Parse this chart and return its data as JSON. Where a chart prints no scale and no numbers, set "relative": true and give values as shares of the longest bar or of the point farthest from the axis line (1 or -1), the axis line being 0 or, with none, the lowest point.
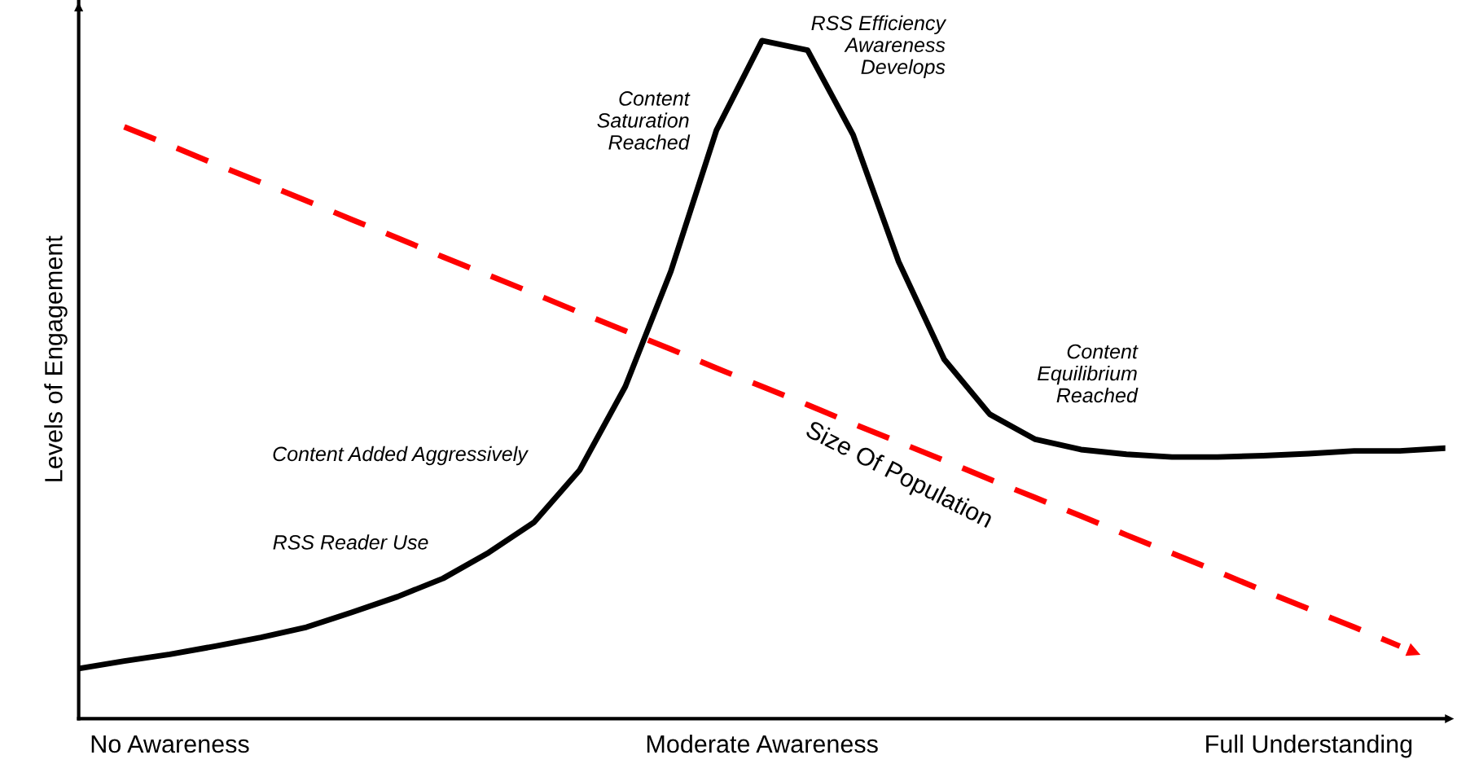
{
  "chart_data": {
    "type": "line",
    "relative": true,
    "ylabel": "Levels of Engagement",
    "categories": [
      null,
      null,
      "No Awareness",
      null,
      null,
      null,
      null,
      null,
      null,
      null,
      null,
      null,
      null,
      null,
      null,
      "Moderate Awareness",
      null,
      null,
      null,
      null,
      null,
      null,
      null,
      null,
      null,
      null,
      null,
      "Full Understanding",
      null,
      null,
      null
    ],
    "series": [
      {
        "color": "#000000",
        "line_style": "solid",
        "values": [
          0.074,
          0.085,
          0.095,
          0.107,
          0.12,
          0.135,
          0.157,
          0.18,
          0.207,
          0.245,
          0.29,
          0.367,
          0.49,
          0.66,
          0.868,
          1.0,
          0.986,
          0.861,
          0.674,
          0.53,
          0.449,
          0.412,
          0.397,
          0.39,
          0.386,
          0.386,
          0.388,
          0.391,
          0.395,
          0.395,
          0.399
        ]
      },
      {
        "name": "Size Of Population",
        "color": "#ff0000",
        "line_style": "dashed",
        "values": [
          null,
          0.873,
          0.846,
          0.818,
          0.791,
          0.764,
          0.736,
          0.709,
          0.681,
          0.654,
          0.627,
          0.599,
          0.572,
          0.545,
          0.517,
          0.49,
          0.463,
          0.435,
          0.408,
          0.381,
          0.353,
          0.326,
          0.299,
          0.271,
          0.244,
          0.217,
          0.189,
          0.162,
          0.135,
          0.107,
          null
        ]
      }
    ],
    "annotations": [
      "RSS Efficiency\nAwareness\nDevelops",
      "Content\nSaturation\nReached",
      "Content\nEquilibrium\nReached",
      "Content Added Aggressively",
      "RSS Reader Use"
    ],
    "grid": false,
    "legend": false,
    "marker": "none"
  }
}
